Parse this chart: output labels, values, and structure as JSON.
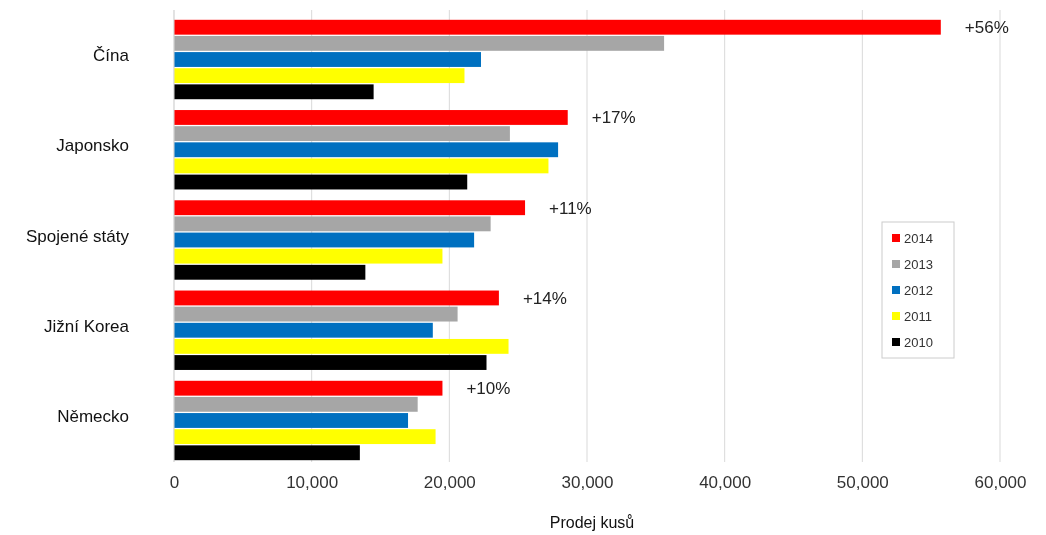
{
  "chart_data": {
    "type": "bar",
    "orientation": "horizontal",
    "xlabel": "Prodej kusů",
    "categories": [
      "Čína",
      "Japonsko",
      "Spojené státy",
      "Jižní Korea",
      "Německo"
    ],
    "series": [
      {
        "name": "2014",
        "color": "#ff0000",
        "values": [
          55700,
          28600,
          25500,
          23600,
          19500
        ]
      },
      {
        "name": "2013",
        "color": "#a6a6a6",
        "values": [
          35600,
          24400,
          23000,
          20600,
          17700
        ]
      },
      {
        "name": "2012",
        "color": "#0070c0",
        "values": [
          22300,
          27900,
          21800,
          18800,
          17000
        ]
      },
      {
        "name": "2011",
        "color": "#ffff00",
        "values": [
          21100,
          27200,
          19500,
          24300,
          19000
        ]
      },
      {
        "name": "2010",
        "color": "#000000",
        "values": [
          14500,
          21300,
          13900,
          22700,
          13500
        ]
      }
    ],
    "xlim": [
      0,
      60000
    ],
    "xticks": [
      {
        "value": 0,
        "label": "0"
      },
      {
        "value": 10000,
        "label": "10,000"
      },
      {
        "value": 20000,
        "label": "20,000"
      },
      {
        "value": 30000,
        "label": "30,000"
      },
      {
        "value": 40000,
        "label": "40,000"
      },
      {
        "value": 50000,
        "label": "50,000"
      },
      {
        "value": 60000,
        "label": "60,000"
      }
    ],
    "grid": "x",
    "legend": "right",
    "annotations": [
      "+56%",
      "+17%",
      "+11%",
      "+14%",
      "+10%"
    ]
  }
}
